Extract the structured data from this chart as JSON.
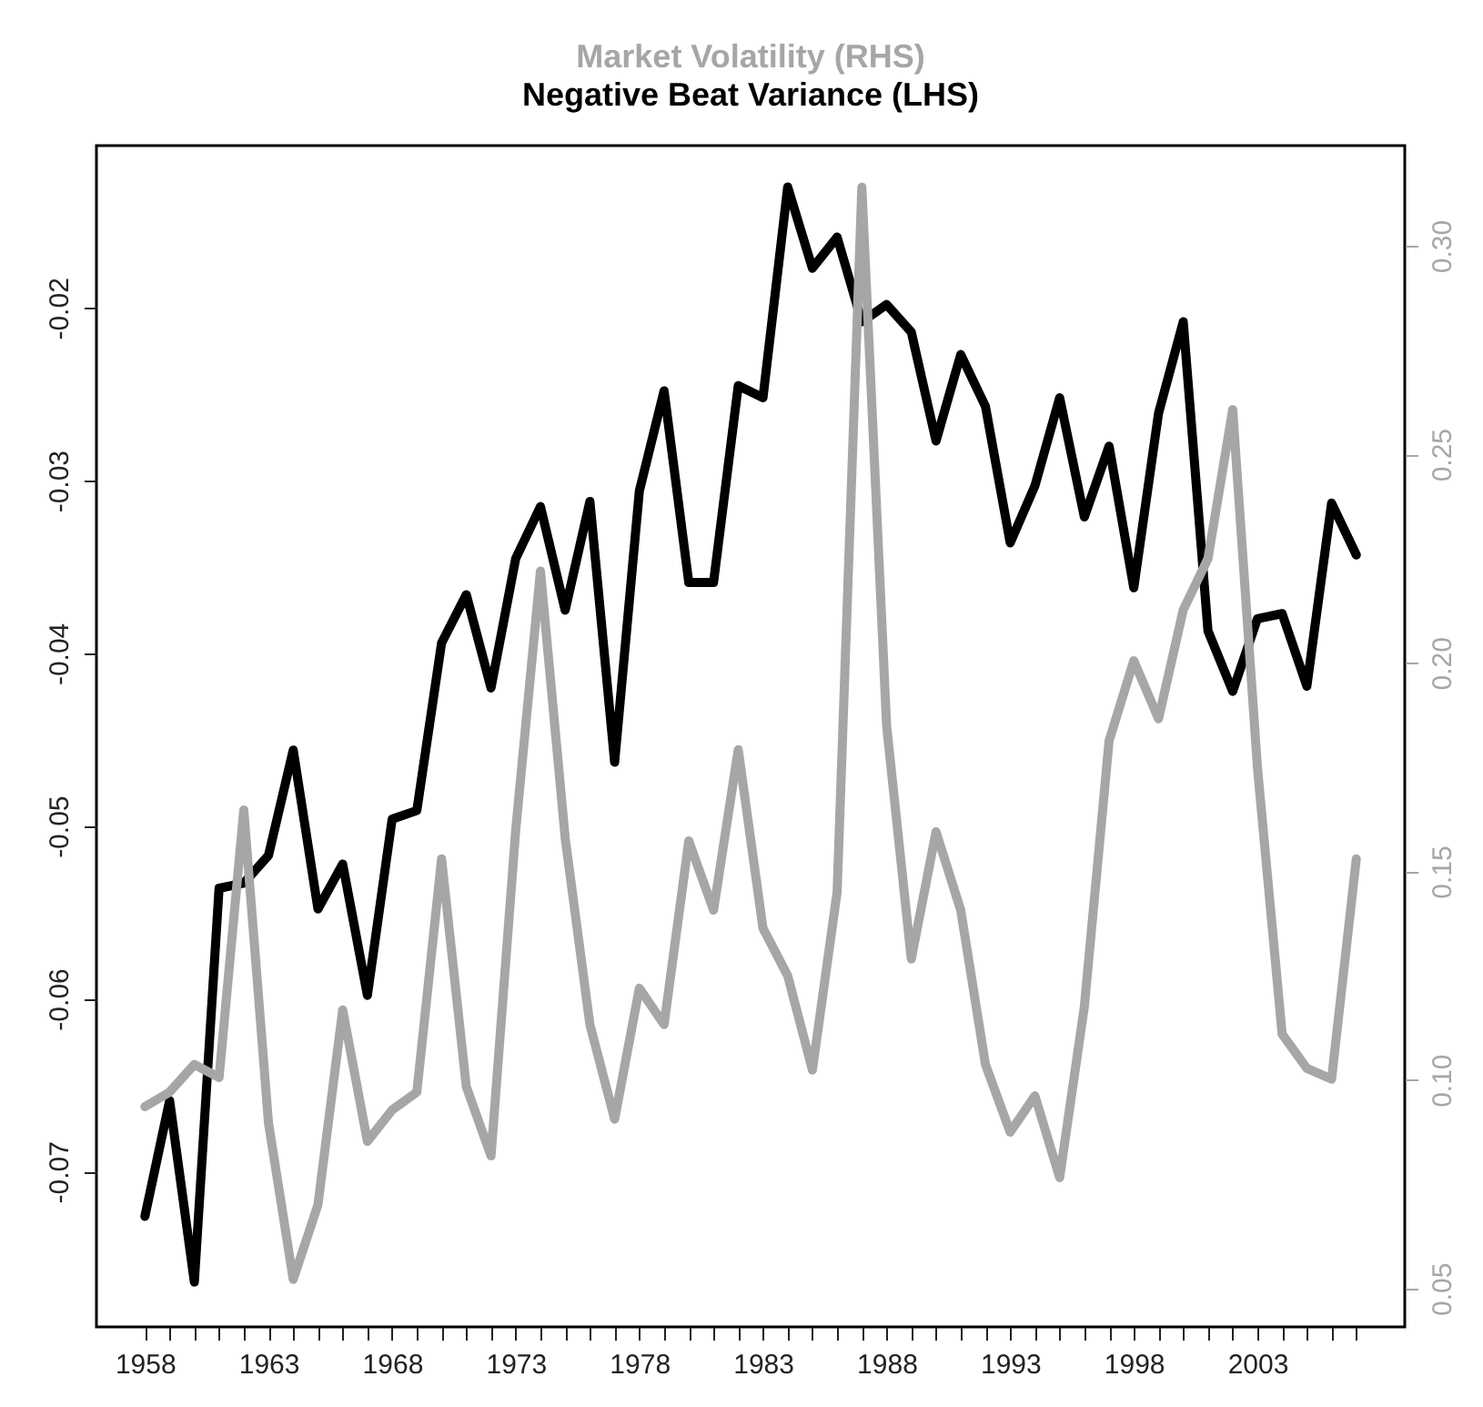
{
  "chart_data": {
    "type": "line",
    "title": "Market Volatility (RHS)",
    "subtitle": "Negative Beat Variance (LHS)",
    "x": [
      1958,
      1959,
      1960,
      1961,
      1962,
      1963,
      1964,
      1965,
      1966,
      1967,
      1968,
      1969,
      1970,
      1971,
      1972,
      1973,
      1974,
      1975,
      1976,
      1977,
      1978,
      1979,
      1980,
      1981,
      1982,
      1983,
      1984,
      1985,
      1986,
      1987,
      1988,
      1989,
      1990,
      1991,
      1992,
      1993,
      1994,
      1995,
      1996,
      1997,
      1998,
      1999,
      2000,
      2001,
      2002,
      2003,
      2004,
      2005,
      2006,
      2007
    ],
    "series": [
      {
        "color": "#000000",
        "values": [
          -0.0726,
          -0.0659,
          -0.0764,
          -0.0536,
          -0.0533,
          -0.0517,
          -0.0456,
          -0.0548,
          -0.0522,
          -0.0598,
          -0.0496,
          -0.0491,
          -0.0394,
          -0.0366,
          -0.042,
          -0.0345,
          -0.0315,
          -0.0375,
          -0.0312,
          -0.0463,
          -0.0306,
          -0.0248,
          -0.0359,
          -0.0359,
          -0.0245,
          -0.0252,
          -0.013,
          -0.0177,
          -0.0159,
          -0.0208,
          -0.0198,
          -0.0214,
          -0.0277,
          -0.0227,
          -0.0257,
          -0.0336,
          -0.0303,
          -0.0252,
          -0.0321,
          -0.028,
          -0.0362,
          -0.0261,
          -0.0208,
          -0.0387,
          -0.0422,
          -0.038,
          -0.0377,
          -0.0419,
          -0.0313,
          -0.0343
        ]
      },
      {
        "color": "#a6a6a6",
        "axis": "y2",
        "values": [
          0.0936,
          0.0971,
          0.1037,
          0.1006,
          0.1647,
          0.0897,
          0.0522,
          0.0701,
          0.1168,
          0.0853,
          0.0928,
          0.0971,
          0.153,
          0.0984,
          0.0818,
          0.16,
          0.222,
          0.158,
          0.1133,
          0.0906,
          0.122,
          0.1133,
          0.1573,
          0.1407,
          0.1792,
          0.1364,
          0.125,
          0.1024,
          0.1451,
          0.314,
          0.185,
          0.129,
          0.1595,
          0.1407,
          0.1037,
          0.0875,
          0.0962,
          0.0766,
          0.1176,
          0.1813,
          0.2005,
          0.1866,
          0.2127,
          0.225,
          0.2607,
          0.175,
          0.111,
          0.1028,
          0.1002,
          0.153
        ]
      }
    ],
    "xlim": [
      1956.04,
      2008.96
    ],
    "xticks": [
      1958,
      {
        "value": 1959,
        "label": null
      },
      {
        "value": 1960,
        "label": null
      },
      {
        "value": 1961,
        "label": null
      },
      {
        "value": 1962,
        "label": null
      },
      1963,
      {
        "value": 1964,
        "label": null
      },
      {
        "value": 1965,
        "label": null
      },
      {
        "value": 1966,
        "label": null
      },
      {
        "value": 1967,
        "label": null
      },
      1968,
      {
        "value": 1969,
        "label": null
      },
      {
        "value": 1970,
        "label": null
      },
      {
        "value": 1971,
        "label": null
      },
      {
        "value": 1972,
        "label": null
      },
      1973,
      {
        "value": 1974,
        "label": null
      },
      {
        "value": 1975,
        "label": null
      },
      {
        "value": 1976,
        "label": null
      },
      {
        "value": 1977,
        "label": null
      },
      1978,
      {
        "value": 1979,
        "label": null
      },
      {
        "value": 1980,
        "label": null
      },
      {
        "value": 1981,
        "label": null
      },
      {
        "value": 1982,
        "label": null
      },
      1983,
      {
        "value": 1984,
        "label": null
      },
      {
        "value": 1985,
        "label": null
      },
      {
        "value": 1986,
        "label": null
      },
      {
        "value": 1987,
        "label": null
      },
      1988,
      {
        "value": 1989,
        "label": null
      },
      {
        "value": 1990,
        "label": null
      },
      {
        "value": 1991,
        "label": null
      },
      {
        "value": 1992,
        "label": null
      },
      1993,
      {
        "value": 1994,
        "label": null
      },
      {
        "value": 1995,
        "label": null
      },
      {
        "value": 1996,
        "label": null
      },
      {
        "value": 1997,
        "label": null
      },
      1998,
      {
        "value": 1999,
        "label": null
      },
      {
        "value": 2000,
        "label": null
      },
      {
        "value": 2001,
        "label": null
      },
      {
        "value": 2002,
        "label": null
      },
      2003,
      {
        "value": 2004,
        "label": null
      },
      {
        "value": 2005,
        "label": null
      },
      {
        "value": 2006,
        "label": null
      },
      {
        "value": 2007,
        "label": null
      }
    ],
    "ylim": [
      -0.079,
      -0.0106
    ],
    "yticks": [
      -0.07,
      -0.06,
      -0.05,
      -0.04,
      -0.03,
      -0.02
    ],
    "y2lim": [
      0.0408,
      0.324
    ],
    "y2ticks": [
      0.05,
      {
        "value": 0.1,
        "label": "0.10"
      },
      0.15,
      {
        "value": 0.2,
        "label": "0.20"
      },
      0.25,
      {
        "value": 0.3,
        "label": "0.30"
      }
    ],
    "grid": false,
    "marker": "none",
    "line_style": "solid"
  }
}
